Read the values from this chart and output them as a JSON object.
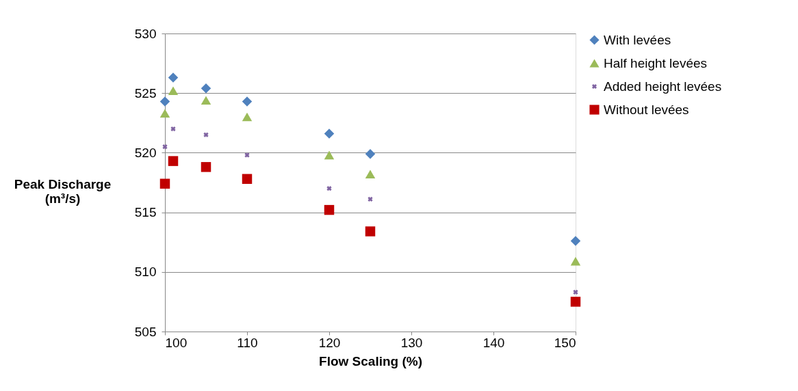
{
  "chart_data": {
    "type": "scatter",
    "xlabel": "Flow Scaling (%)",
    "ylabel": "Peak Discharge (m³/s)",
    "x": [
      100,
      101,
      105,
      110,
      120,
      125,
      150
    ],
    "xlim": [
      100,
      150
    ],
    "xticks": [
      100,
      110,
      120,
      130,
      140,
      150
    ],
    "ylim": [
      505,
      530
    ],
    "yticks": [
      505,
      510,
      515,
      520,
      525,
      530
    ],
    "grid": "y",
    "legend": "right",
    "series": [
      {
        "name": "With levées",
        "color": "#4f81bd",
        "marker": "diamond",
        "values": [
          524.3,
          526.3,
          525.4,
          524.3,
          521.6,
          519.9,
          512.6
        ]
      },
      {
        "name": "Half height levées",
        "color": "#9bbb59",
        "marker": "triangle",
        "values": [
          523.3,
          525.2,
          524.4,
          523.0,
          519.8,
          518.2,
          510.9
        ]
      },
      {
        "name": "Added height levées",
        "color": "#8064a2",
        "marker": "cross",
        "values": [
          520.5,
          522.0,
          521.5,
          519.8,
          517.0,
          516.1,
          508.3
        ]
      },
      {
        "name": "Without levées",
        "color": "#c00000",
        "marker": "square",
        "values": [
          517.4,
          519.3,
          518.8,
          517.8,
          515.2,
          513.4,
          507.5
        ]
      }
    ]
  }
}
